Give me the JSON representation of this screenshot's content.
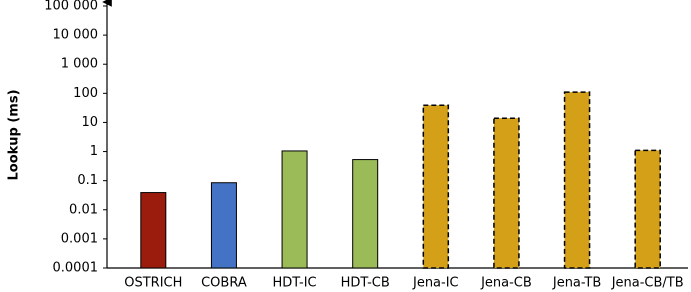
{
  "chart_data": {
    "type": "bar",
    "y_label": "Lookup (ms)",
    "categories": [
      "OSTRICH",
      "COBRA",
      "HDT-IC",
      "HDT-CB",
      "Jena-IC",
      "Jena-CB",
      "Jena-TB",
      "Jena-CB/TB"
    ],
    "values": [
      0.039,
      0.085,
      1.05,
      0.53,
      39,
      14,
      110,
      1.1
    ],
    "colors": [
      "#9b1c0c",
      "#4472c4",
      "#9bbb59",
      "#9bbb59",
      "#d4a017",
      "#d4a017",
      "#d4a017",
      "#d4a017"
    ],
    "border_styles": [
      "solid",
      "solid",
      "solid",
      "solid",
      "dashed",
      "dashed",
      "dashed",
      "dashed"
    ],
    "log_scale": true,
    "grid": false,
    "ylim": [
      0.0001,
      100000
    ],
    "yticks": [
      0.0001,
      0.001,
      0.01,
      0.1,
      1,
      10,
      100,
      {
        "value": 1000,
        "label": "1 000"
      },
      {
        "value": 10000,
        "label": "10 000"
      },
      {
        "value": 100000,
        "label": "100 000"
      }
    ]
  }
}
